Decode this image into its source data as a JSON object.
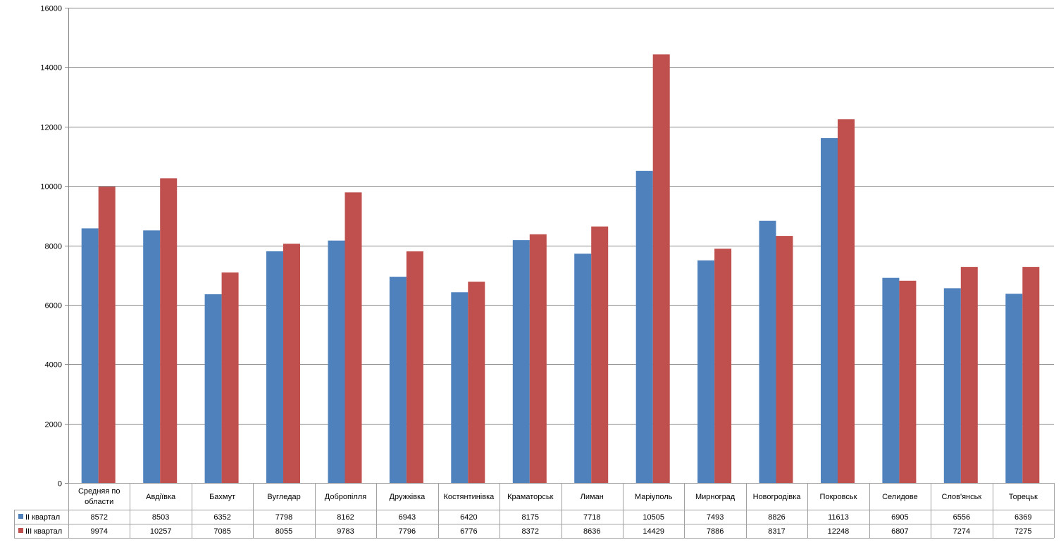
{
  "colors": {
    "series1": "#4F81BD",
    "series2": "#C0504D",
    "grid": "#868686",
    "table": "#A0A0A0"
  },
  "chart_data": {
    "type": "bar",
    "categories": [
      [
        "Средняя по",
        "области"
      ],
      [
        "Авдіївка"
      ],
      [
        "Бахмут"
      ],
      [
        "Вугледар"
      ],
      [
        "Добропілля"
      ],
      [
        "Дружківка"
      ],
      [
        "Костянтинівка"
      ],
      [
        "Краматорськ"
      ],
      [
        "Лиман"
      ],
      [
        "Маріуполь"
      ],
      [
        "Мирноград"
      ],
      [
        "Новогродівка"
      ],
      [
        "Покровськ"
      ],
      [
        "Селидове"
      ],
      [
        "Слов'янськ"
      ],
      [
        "Торецьк"
      ]
    ],
    "series": [
      {
        "name": "II квартал",
        "values": [
          8572,
          8503,
          6352,
          7798,
          8162,
          6943,
          6420,
          8175,
          7718,
          10505,
          7493,
          8826,
          11613,
          6905,
          6556,
          6369
        ]
      },
      {
        "name": "III квартал",
        "values": [
          9974,
          10257,
          7085,
          8055,
          9783,
          7796,
          6776,
          8372,
          8636,
          14429,
          7886,
          8317,
          12248,
          6807,
          7274,
          7275
        ]
      }
    ],
    "ylim": [
      0,
      16000
    ],
    "yticks": [
      0,
      2000,
      4000,
      6000,
      8000,
      10000,
      12000,
      14000,
      16000
    ],
    "grid": true,
    "legend": "data-table"
  }
}
